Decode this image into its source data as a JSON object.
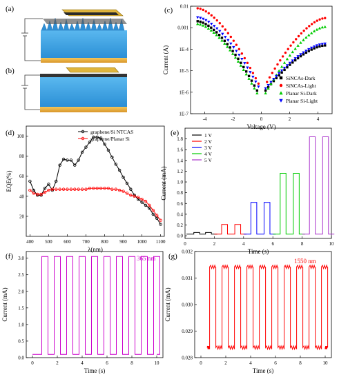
{
  "panels": {
    "a": {
      "label": "(a)"
    },
    "b": {
      "label": "(b)"
    },
    "c": {
      "label": "(c)"
    },
    "d": {
      "label": "(d)"
    },
    "e": {
      "label": "(e)"
    },
    "f": {
      "label": "(f)",
      "annotation": "365 nm"
    },
    "g": {
      "label": "(g)",
      "annotation": "1550 nm"
    }
  },
  "colors": {
    "black": "#000000",
    "red": "#ff0000",
    "green": "#00cc00",
    "blue": "#0000ff",
    "magenta": "#cc00cc",
    "silicon": "#3fa9e8",
    "gold": "#e8b030",
    "purple": "#aa33cc"
  },
  "chart_data": [
    {
      "id": "c",
      "type": "scatter",
      "xlabel": "Voltage (V)",
      "ylabel": "Current (A)",
      "xlim": [
        -5,
        5
      ],
      "ylim_log10": [
        -7,
        -2
      ],
      "xticks": [
        -4,
        -2,
        0,
        2,
        4
      ],
      "xtick_labels": [
        "-4",
        "-2",
        "0",
        "2",
        "4"
      ],
      "yticks_log10": [
        -7,
        -6,
        -5,
        -4,
        -3,
        -2
      ],
      "ytick_labels": [
        "1E-7",
        "1E-6",
        "1E-5",
        "1E-4",
        "0.001",
        "0.01"
      ],
      "legend_position": "bottom-right",
      "series": [
        {
          "name": "SiNCAs-Dark",
          "color": "#000000",
          "marker": "square",
          "neg": [
            [
              -4.5,
              0.002
            ],
            [
              -0.3,
              1.2e-06
            ]
          ],
          "pos": [
            [
              0.3,
              1.2e-06
            ],
            [
              4.5,
              0.00015
            ]
          ]
        },
        {
          "name": "SiNCAs-Light",
          "color": "#ff0000",
          "marker": "circle",
          "neg": [
            [
              -4.5,
              0.008
            ],
            [
              -0.2,
              2.5e-06
            ]
          ],
          "pos": [
            [
              0.4,
              3e-06
            ],
            [
              4.5,
              0.0028
            ]
          ]
        },
        {
          "name": "Planar Si-Dark",
          "color": "#00cc00",
          "marker": "triangle-up",
          "neg": [
            [
              -4.5,
              0.0015
            ],
            [
              -0.3,
              9e-07
            ]
          ],
          "pos": [
            [
              0.3,
              9e-07
            ],
            [
              4.5,
              0.0011
            ]
          ]
        },
        {
          "name": "Planar Si-Light",
          "color": "#0000ff",
          "marker": "triangle-down",
          "neg": [
            [
              -4.5,
              0.003
            ],
            [
              -0.2,
              1.8e-06
            ]
          ],
          "pos": [
            [
              0.3,
              1.5e-06
            ],
            [
              4.5,
              0.00018
            ]
          ]
        }
      ]
    },
    {
      "id": "d",
      "type": "line",
      "xlabel": "λ(nm)",
      "ylabel": "EQE(%)",
      "xlim": [
        380,
        1120
      ],
      "ylim": [
        0,
        110
      ],
      "xticks": [
        400,
        500,
        600,
        700,
        800,
        900,
        1000,
        1100
      ],
      "yticks": [
        20,
        40,
        60,
        80,
        100
      ],
      "legend_position": "top-right",
      "series": [
        {
          "name": "graphene/Si NTCAS",
          "color": "#000000",
          "x": [
            400,
            420,
            440,
            460,
            480,
            500,
            520,
            540,
            560,
            580,
            600,
            620,
            640,
            660,
            680,
            700,
            720,
            740,
            760,
            780,
            800,
            820,
            840,
            860,
            880,
            900,
            920,
            940,
            960,
            980,
            1000,
            1020,
            1040,
            1060,
            1080,
            1100
          ],
          "y": [
            55,
            46,
            41,
            41,
            48,
            52,
            46,
            55,
            71,
            77,
            76,
            76,
            71,
            76,
            84,
            89,
            94,
            99,
            99,
            98,
            92,
            86,
            79,
            72,
            66,
            59,
            53,
            47,
            41,
            37,
            34,
            31,
            28,
            22,
            18,
            12
          ]
        },
        {
          "name": "graphene/Planar Si",
          "color": "#ff0000",
          "x": [
            400,
            420,
            440,
            460,
            480,
            500,
            520,
            540,
            560,
            580,
            600,
            620,
            640,
            660,
            680,
            700,
            720,
            740,
            760,
            780,
            800,
            820,
            840,
            860,
            880,
            900,
            920,
            940,
            960,
            980,
            1000,
            1020,
            1040,
            1060,
            1080,
            1100
          ],
          "y": [
            46,
            43,
            42,
            42,
            44,
            46,
            47,
            47,
            47,
            47,
            47,
            47,
            47,
            47,
            47,
            47,
            48,
            48,
            48,
            48,
            48,
            48,
            47,
            47,
            46,
            45,
            43,
            41,
            40,
            39,
            37,
            35,
            31,
            26,
            21,
            16
          ]
        }
      ]
    },
    {
      "id": "e",
      "type": "line",
      "xlabel": "Time (s)",
      "ylabel": "Current (mA)",
      "xlim": [
        0,
        10
      ],
      "ylim": [
        -0.05,
        2.0
      ],
      "xticks": [
        0,
        2,
        4,
        6,
        8,
        10
      ],
      "yticks": [
        0.0,
        0.2,
        0.4,
        0.6,
        0.8,
        1.0,
        1.2,
        1.4,
        1.6,
        1.8
      ],
      "ytick_labels": [
        "0.0",
        "0.2",
        "0.4",
        "0.6",
        "0.8",
        "1.0",
        "1.2",
        "1.4",
        "1.6",
        "1.8"
      ],
      "legend_position": "top-left",
      "baseline": 0.03,
      "series": [
        {
          "name": "1 V",
          "color": "#000000",
          "level": 0.06,
          "pulses": [
            [
              0.6,
              1.0
            ],
            [
              1.4,
              1.8
            ]
          ]
        },
        {
          "name": "2 V",
          "color": "#ff0000",
          "level": 0.21,
          "pulses": [
            [
              2.5,
              2.9
            ],
            [
              3.4,
              3.8
            ]
          ]
        },
        {
          "name": "3 V",
          "color": "#0000ff",
          "level": 0.62,
          "pulses": [
            [
              4.5,
              4.9
            ],
            [
              5.4,
              5.8
            ]
          ]
        },
        {
          "name": "4 V",
          "color": "#00cc00",
          "level": 1.16,
          "pulses": [
            [
              6.5,
              6.9
            ],
            [
              7.4,
              7.8
            ]
          ]
        },
        {
          "name": "5 V",
          "color": "#aa33cc",
          "level": 1.84,
          "pulses": [
            [
              8.5,
              8.9
            ],
            [
              9.4,
              9.8
            ]
          ]
        }
      ]
    },
    {
      "id": "f",
      "type": "line",
      "xlabel": "Time (s)",
      "ylabel": "Current (mA)",
      "xlim": [
        -0.5,
        10.5
      ],
      "ylim": [
        0.0,
        3.2
      ],
      "xticks": [
        0,
        2,
        4,
        6,
        8,
        10
      ],
      "yticks": [
        0.0,
        0.5,
        1.0,
        1.5,
        2.0,
        2.5,
        3.0
      ],
      "ytick_labels": [
        "0.0",
        "0.5",
        "1.0",
        "1.5",
        "2.0",
        "2.5",
        "3.0"
      ],
      "color": "#cc00cc",
      "low": 0.1,
      "high": 3.05,
      "period": 1.0,
      "on_start": 0.75,
      "on_end": 1.25,
      "cycles": 10,
      "x_start": 0.0
    },
    {
      "id": "g",
      "type": "line",
      "xlabel": "Time (s)",
      "ylabel": "Current (mA)",
      "xlim": [
        -0.5,
        10.5
      ],
      "ylim": [
        0.028,
        0.032
      ],
      "xticks": [
        0,
        2,
        4,
        6,
        8,
        10
      ],
      "yticks": [
        0.028,
        0.029,
        0.03,
        0.031,
        0.032
      ],
      "ytick_labels": [
        "0.028",
        "0.029",
        "0.030",
        "0.031",
        "0.032"
      ],
      "color": "#ff0000",
      "low": 0.02838,
      "high": 0.03142,
      "period": 1.0,
      "on_start": 0.7,
      "on_end": 1.2,
      "cycles": 10,
      "x_start": 0.5
    }
  ]
}
